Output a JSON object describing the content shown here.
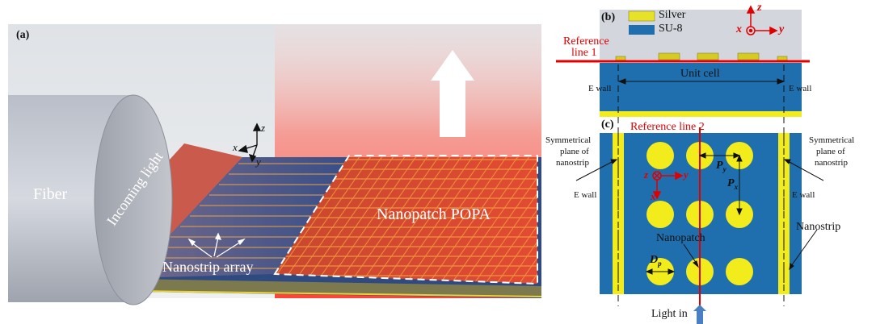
{
  "panel_a": {
    "label": "(a)",
    "fiber": "Fiber",
    "incoming_light": "Incoming light",
    "nanostrip_array": "Nanostrip array",
    "nanopatch_popa": "Nanopatch POPA",
    "axes": {
      "x": "x",
      "y": "y",
      "z": "z"
    }
  },
  "panel_b": {
    "label": "(b)",
    "legend": [
      {
        "name": "Silver",
        "color": "#e6e22a"
      },
      {
        "name": "SU-8",
        "color": "#1f6fae"
      }
    ],
    "reference_line_1": [
      "Reference",
      "line 1"
    ],
    "unit_cell": "Unit cell",
    "e_wall_left": "E wall",
    "e_wall_right": "E wall",
    "axes": {
      "x": "x",
      "y": "y",
      "z": "z"
    }
  },
  "panel_c": {
    "label": "(c)",
    "reference_line_2": "Reference line 2",
    "sym_left": [
      "Symmetrical",
      "plane of",
      "nanostrip"
    ],
    "sym_right": [
      "Symmetrical",
      "plane of",
      "nanostrip"
    ],
    "e_wall_left": "E wall",
    "e_wall_right": "E wall",
    "nanostrip": "Nanostrip",
    "nanopatch": "Nanopatch",
    "py": "P",
    "py_sub": "y",
    "px": "P",
    "px_sub": "x",
    "dp": "D",
    "dp_sub": "p",
    "light_in": "Light in",
    "axes": {
      "x": "x",
      "y": "y",
      "z": "z"
    }
  },
  "colors": {
    "su8": "#1f6fae",
    "silver": "#f2ec1c",
    "red": "#e00000"
  }
}
